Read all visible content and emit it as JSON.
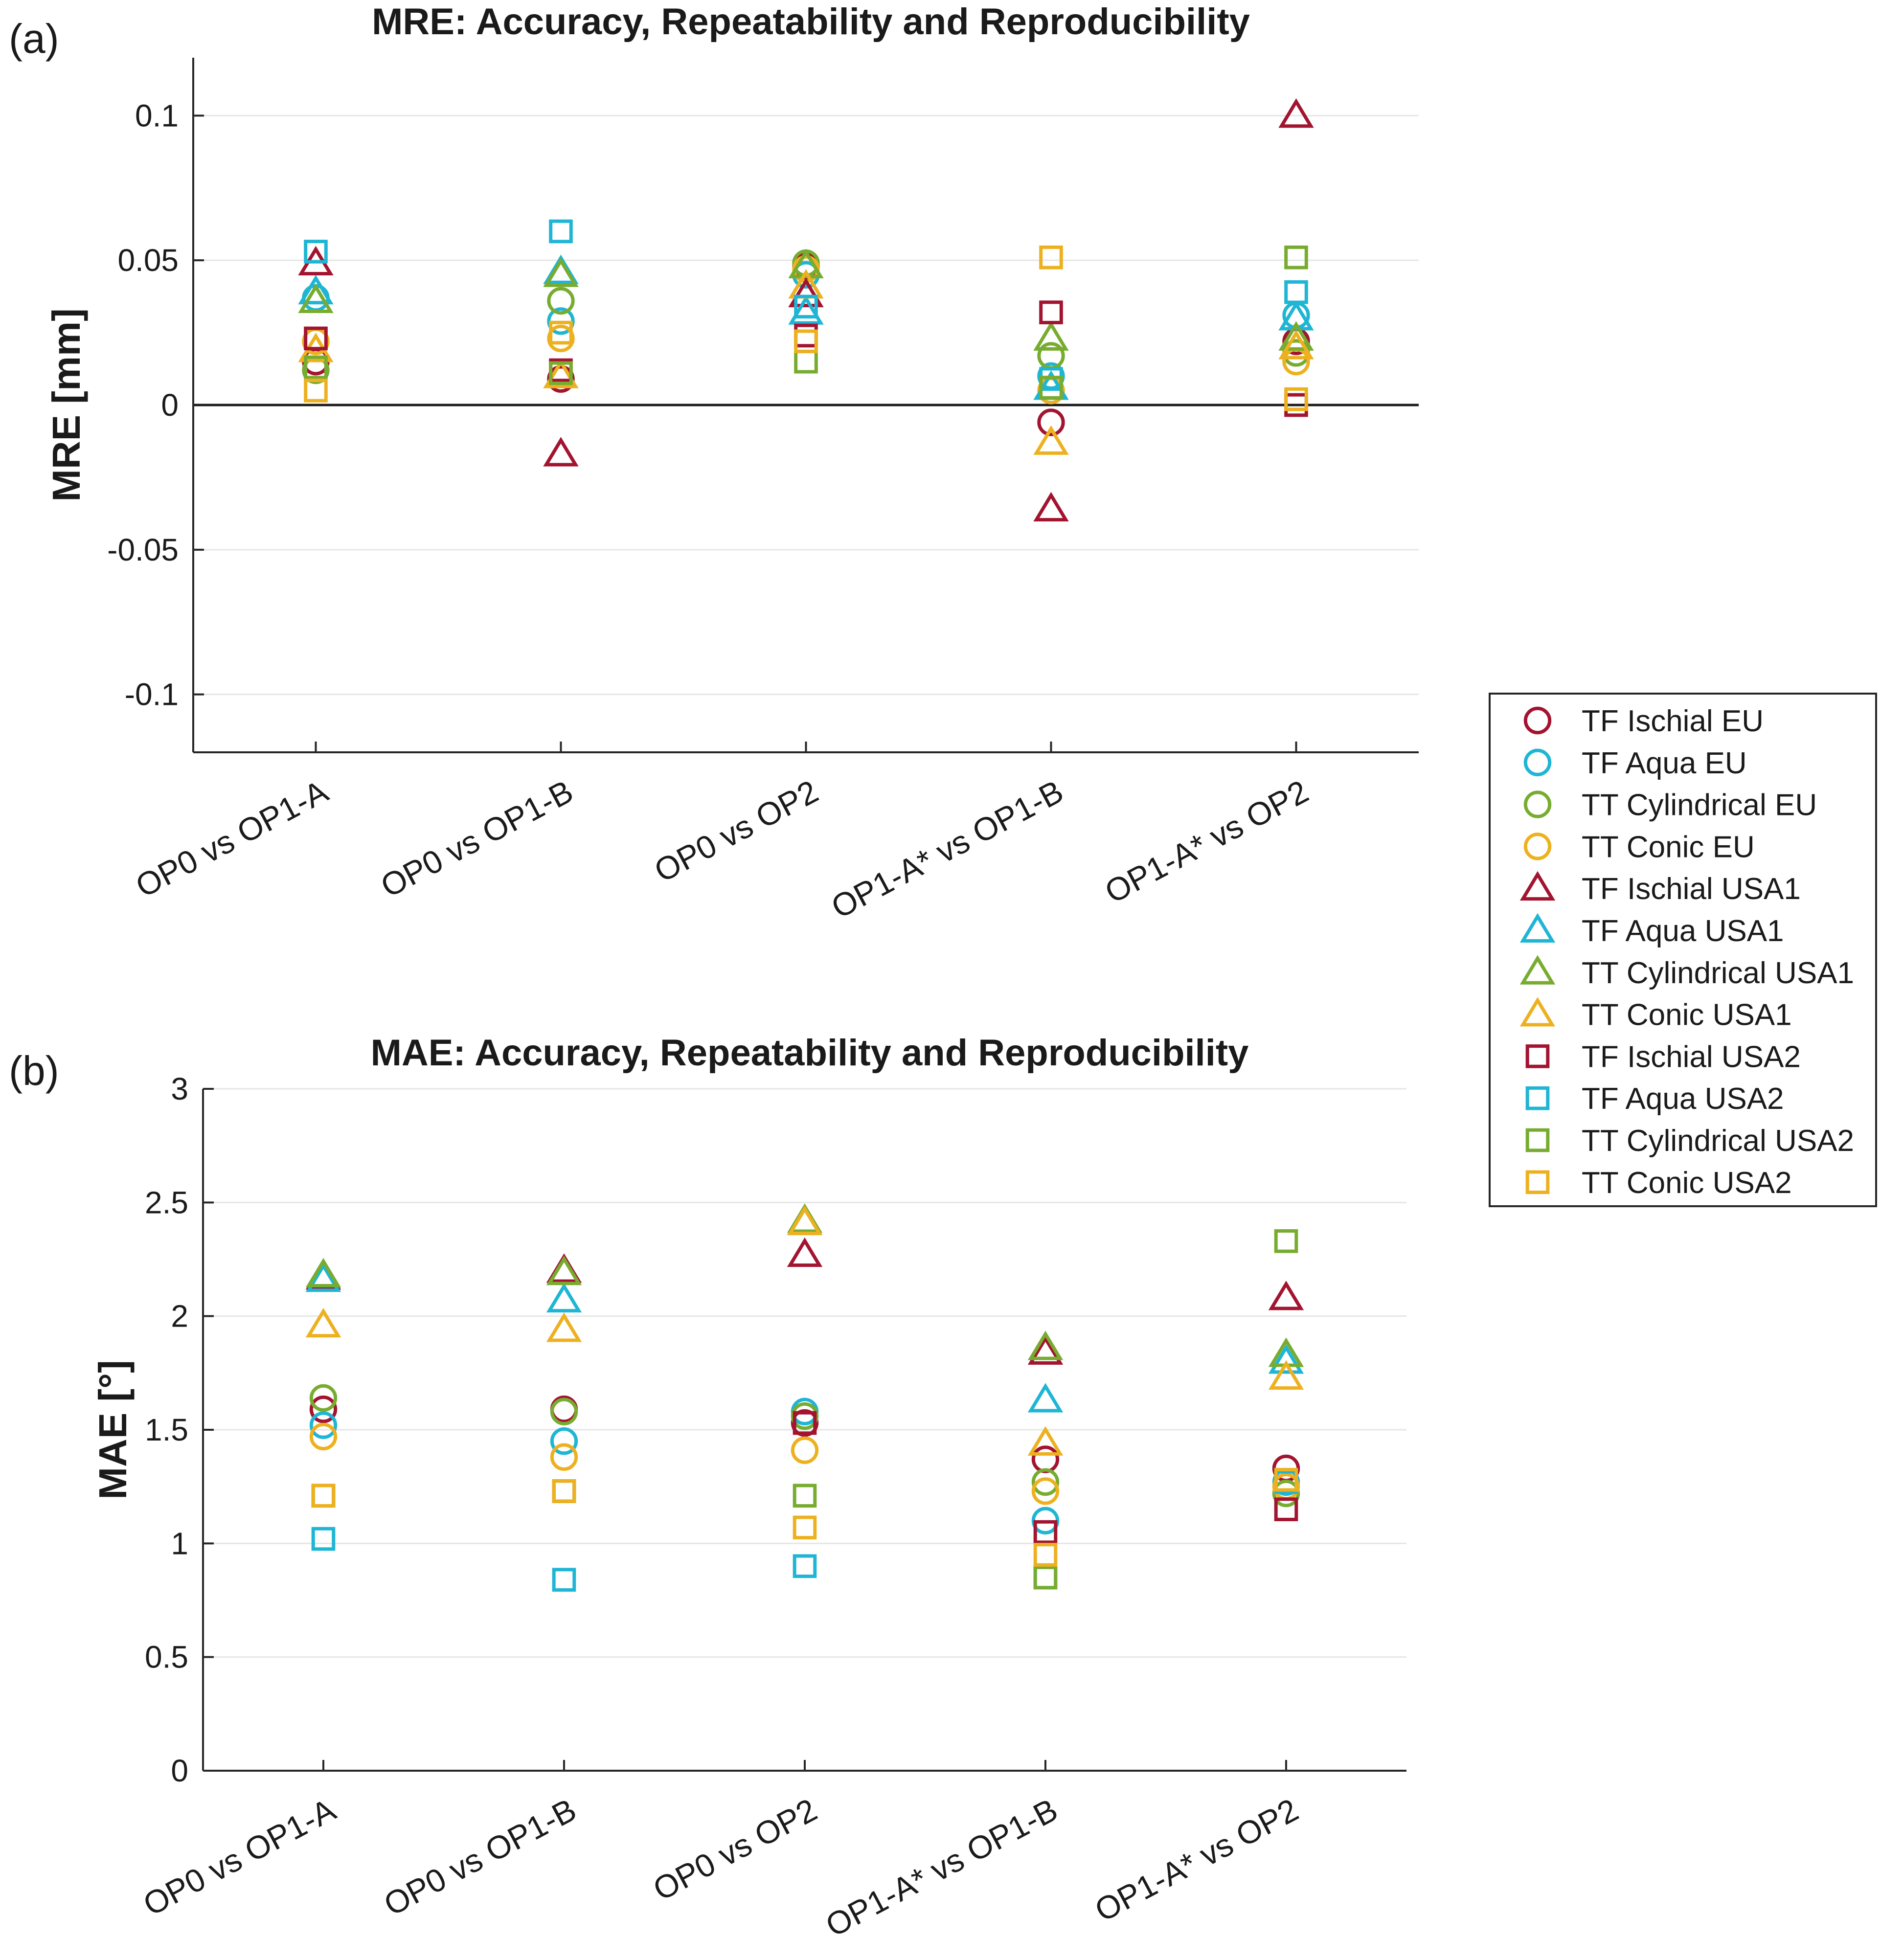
{
  "chart_data": [
    {
      "type": "scatter",
      "panel_label": "(a)",
      "title": "MRE: Accuracy, Repeatability and Reproducibility",
      "xlabel": "",
      "ylabel": "MRE  [mm]",
      "ylim": [
        -0.12,
        0.12
      ],
      "yticks": [
        -0.1,
        -0.05,
        0,
        0.05,
        0.1
      ],
      "ytick_labels": [
        "-0.1",
        "-0.05",
        "0",
        "0.05",
        "0.1"
      ],
      "zero_line": true,
      "grid": true,
      "categories": [
        "OP0 vs OP1-A",
        "OP0 vs OP1-B",
        "OP0 vs OP2",
        "OP1-A* vs OP1-B",
        "OP1-A* vs OP2"
      ],
      "series": [
        {
          "name": "TF Ischial EU",
          "values": [
            0.015,
            0.009,
            0.048,
            -0.006,
            0.022
          ]
        },
        {
          "name": "TF Aqua EU",
          "values": [
            0.037,
            0.029,
            0.045,
            0.01,
            0.031
          ]
        },
        {
          "name": "TT Cylindrical EU",
          "values": [
            0.012,
            0.036,
            0.049,
            0.017,
            0.018
          ]
        },
        {
          "name": "TT Conic EU",
          "values": [
            0.022,
            0.023,
            0.047,
            0.005,
            0.015
          ]
        },
        {
          "name": "TF Ischial USA1",
          "values": [
            0.049,
            -0.017,
            0.038,
            -0.036,
            0.1
          ]
        },
        {
          "name": "TF Aqua USA1",
          "values": [
            0.039,
            0.046,
            0.032,
            0.006,
            0.03
          ]
        },
        {
          "name": "TT Cylindrical USA1",
          "values": [
            0.036,
            0.045,
            0.048,
            0.023,
            0.023
          ]
        },
        {
          "name": "TT Conic USA1",
          "values": [
            0.019,
            0.01,
            0.041,
            -0.013,
            0.02
          ]
        },
        {
          "name": "TF Ischial USA2",
          "values": [
            0.023,
            0.012,
            0.024,
            0.032,
            0.0
          ]
        },
        {
          "name": "TF Aqua USA2",
          "values": [
            0.053,
            0.06,
            0.034,
            0.009,
            0.039
          ]
        },
        {
          "name": "TT Cylindrical USA2",
          "values": [
            0.013,
            0.011,
            0.015,
            0.006,
            0.051
          ]
        },
        {
          "name": "TT Conic USA2",
          "values": [
            0.005,
            0.025,
            0.022,
            0.051,
            0.002
          ]
        }
      ]
    },
    {
      "type": "scatter",
      "panel_label": "(b)",
      "title": "MAE: Accuracy, Repeatability and Reproducibility",
      "xlabel": "",
      "ylabel": "MAE [°]",
      "ylim": [
        0,
        3
      ],
      "yticks": [
        0,
        0.5,
        1,
        1.5,
        2,
        2.5,
        3
      ],
      "ytick_labels": [
        "0",
        "0.5",
        "1",
        "1.5",
        "2",
        "2.5",
        "3"
      ],
      "zero_line": false,
      "grid": true,
      "categories": [
        "OP0 vs OP1-A",
        "OP0 vs OP1-B",
        "OP0 vs OP2",
        "OP1-A* vs OP1-B",
        "OP1-A* vs OP2"
      ],
      "series": [
        {
          "name": "TF Ischial EU",
          "values": [
            1.59,
            1.59,
            1.53,
            1.37,
            1.33
          ]
        },
        {
          "name": "TF Aqua EU",
          "values": [
            1.52,
            1.45,
            1.58,
            1.1,
            1.27
          ]
        },
        {
          "name": "TT Cylindrical EU",
          "values": [
            1.64,
            1.58,
            1.56,
            1.27,
            1.22
          ]
        },
        {
          "name": "TT Conic EU",
          "values": [
            1.47,
            1.38,
            1.41,
            1.23,
            1.25
          ]
        },
        {
          "name": "TF Ischial USA1",
          "values": [
            2.17,
            2.2,
            2.27,
            1.84,
            2.08
          ]
        },
        {
          "name": "TF Aqua USA1",
          "values": [
            2.16,
            2.07,
            2.41,
            1.63,
            1.8
          ]
        },
        {
          "name": "TT Cylindrical USA1",
          "values": [
            2.18,
            2.19,
            2.42,
            1.86,
            1.83
          ]
        },
        {
          "name": "TT Conic USA1",
          "values": [
            1.96,
            1.94,
            2.41,
            1.44,
            1.73
          ]
        },
        {
          "name": "TF Ischial USA2",
          "values": [
            1.21,
            1.23,
            1.53,
            1.05,
            1.15
          ]
        },
        {
          "name": "TF Aqua USA2",
          "values": [
            1.02,
            0.84,
            0.9,
            0.85,
            1.27
          ]
        },
        {
          "name": "TT Cylindrical USA2",
          "values": [
            1.21,
            1.23,
            1.21,
            0.85,
            2.33
          ]
        },
        {
          "name": "TT Conic USA2",
          "values": [
            1.21,
            1.23,
            1.07,
            0.95,
            1.28
          ]
        }
      ]
    }
  ],
  "legend": {
    "placement": "right",
    "entries": [
      {
        "name": "TF Ischial EU",
        "marker": "circle",
        "color": "#a2142f"
      },
      {
        "name": "TF Aqua EU",
        "marker": "circle",
        "color": "#1fb5d4"
      },
      {
        "name": "TT Cylindrical EU",
        "marker": "circle",
        "color": "#77ac30"
      },
      {
        "name": "TT Conic EU",
        "marker": "circle",
        "color": "#edb120"
      },
      {
        "name": "TF Ischial USA1",
        "marker": "triangle",
        "color": "#a2142f"
      },
      {
        "name": "TF Aqua USA1",
        "marker": "triangle",
        "color": "#1fb5d4"
      },
      {
        "name": "TT Cylindrical USA1",
        "marker": "triangle",
        "color": "#77ac30"
      },
      {
        "name": "TT Conic USA1",
        "marker": "triangle",
        "color": "#edb120"
      },
      {
        "name": "TF Ischial USA2",
        "marker": "square",
        "color": "#a2142f"
      },
      {
        "name": "TF Aqua USA2",
        "marker": "square",
        "color": "#1fb5d4"
      },
      {
        "name": "TT Cylindrical USA2",
        "marker": "square",
        "color": "#77ac30"
      },
      {
        "name": "TT Conic USA2",
        "marker": "square",
        "color": "#edb120"
      }
    ]
  }
}
